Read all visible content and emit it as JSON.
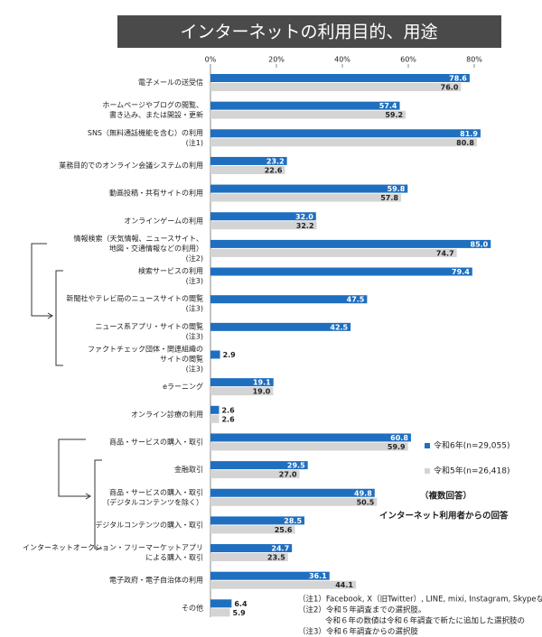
{
  "chart_data": {
    "type": "bar",
    "orientation": "horizontal",
    "title": "インターネットの利用目的、用途",
    "categories": [
      [
        "電子メールの送受信"
      ],
      [
        "ホームページやブログの閲覧、",
        "書き込み、または開設・更新"
      ],
      [
        "SNS（無料通話機能を含む）の利用"
      ],
      [
        "業務目的でのオンライン会議システムの利用"
      ],
      [
        "動画投稿・共有サイトの利用"
      ],
      [
        "オンラインゲームの利用"
      ],
      [
        "情報検索（天気情報、ニュースサイト、",
        "地図・交通情報などの利用）"
      ],
      [
        "検索サービスの利用"
      ],
      [
        "新聞社やテレビ局のニュースサイトの閲覧"
      ],
      [
        "ニュース系アプリ・サイトの閲覧"
      ],
      [
        "ファクトチェック団体・関連組織の",
        "サイトの閲覧"
      ],
      [
        "eラーニング"
      ],
      [
        "オンライン診療の利用"
      ],
      [
        "商品・サービスの購入・取引"
      ],
      [
        "金融取引"
      ],
      [
        "商品・サービスの購入・取引",
        "（デジタルコンテンツを除く）"
      ],
      [
        "デジタルコンテンツの購入・取引"
      ],
      [
        "インターネットオークション・フリーマーケットアプリ",
        "による購入・取引"
      ],
      [
        "電子政府・電子自治体の利用"
      ],
      [
        "その他"
      ]
    ],
    "category_notes": [
      null,
      null,
      "(注1)",
      null,
      null,
      null,
      "(注2)",
      "(注3)",
      "(注3)",
      "(注3)",
      "(注3)",
      null,
      null,
      null,
      null,
      null,
      null,
      null,
      null,
      null
    ],
    "series": [
      {
        "name": "令和6年(n=29,055)",
        "color": "#1f6fc0",
        "values": [
          78.6,
          57.4,
          81.9,
          23.2,
          59.8,
          32.0,
          85.0,
          79.4,
          47.5,
          42.5,
          2.9,
          19.1,
          2.6,
          60.8,
          29.5,
          49.8,
          28.5,
          24.7,
          36.1,
          6.4
        ],
        "value_labels": [
          "78.6",
          "57.4",
          "81.9",
          "23.2",
          "59.8",
          "32.0",
          "85.0",
          "79.4",
          "47.5",
          "42.5",
          "2.9",
          "19.1",
          "2.6",
          "60.8",
          "29.5",
          "49.8",
          "28.5",
          "24.7",
          "36.1",
          "6.4"
        ]
      },
      {
        "name": "令和5年(n=26,418)",
        "color": "#d4d4d4",
        "values": [
          76.0,
          59.2,
          80.8,
          22.6,
          57.8,
          32.2,
          74.7,
          null,
          null,
          null,
          null,
          19.0,
          2.6,
          59.9,
          27.0,
          50.5,
          25.6,
          23.5,
          44.1,
          5.9
        ],
        "value_labels": [
          "76.0",
          "59.2",
          "80.8",
          "22.6",
          "57.8",
          "32.2",
          "74.7",
          null,
          null,
          null,
          null,
          "19.0",
          "2.6",
          "59.9",
          "27.0",
          "50.5",
          "25.6",
          "23.5",
          "44.1",
          "5.9"
        ]
      }
    ],
    "xlim": [
      0,
      80
    ],
    "xticks": [
      {
        "value": 0,
        "label": "0%"
      },
      {
        "value": 20,
        "label": "20%"
      },
      {
        "value": 40,
        "label": "40%"
      },
      {
        "value": 60,
        "label": "60%"
      },
      {
        "value": 80,
        "label": "80%"
      }
    ],
    "annotations": [
      "（複数回答）",
      "インターネット利用者からの回答"
    ],
    "footnotes": [
      "（注1）Facebook, X（旧Twitter）, LINE, mixi, Instagram, Skypeなどの利",
      "（注2）令和５年調査までの選択肢。",
      "令和６年の数値は令和６年調査で新たに追加した選択肢の",
      "（注3）令和６年調査からの選択肢"
    ]
  }
}
